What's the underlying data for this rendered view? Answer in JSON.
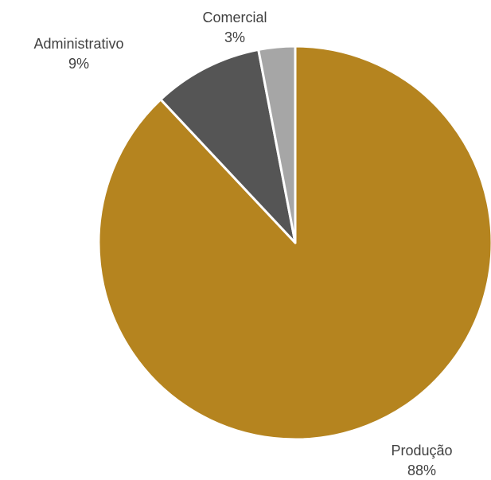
{
  "chart_data": {
    "type": "pie",
    "categories": [
      "Produção",
      "Administrativo",
      "Comercial"
    ],
    "values": [
      88,
      9,
      3
    ],
    "value_labels": [
      "88%",
      "9%",
      "3%"
    ],
    "colors": [
      "#b5841f",
      "#555555",
      "#a6a6a6"
    ],
    "title": "",
    "legend": "none"
  }
}
